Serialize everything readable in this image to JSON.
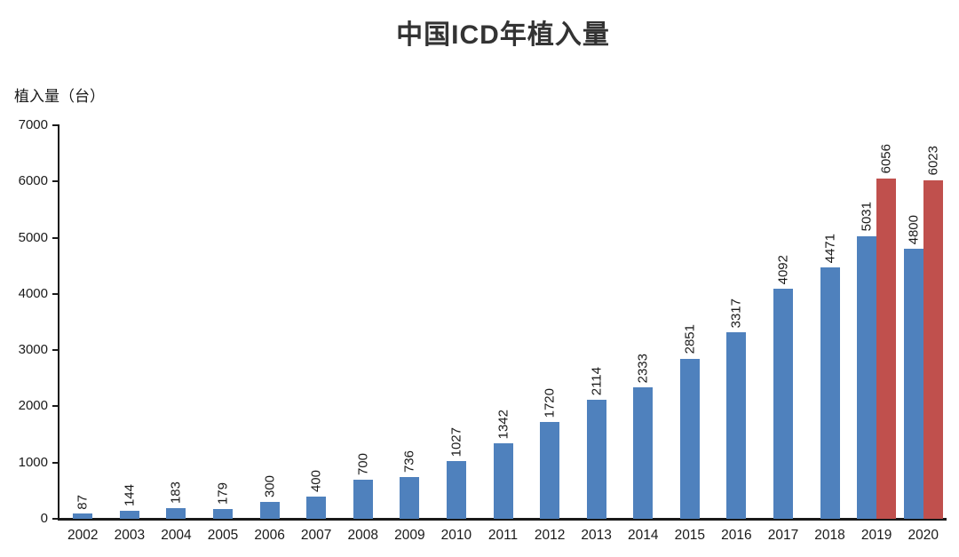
{
  "chart_data": {
    "type": "bar",
    "title": "中国ICD年植入量",
    "ylabel": "植入量（台）",
    "xlabel": "",
    "categories": [
      "2002",
      "2003",
      "2004",
      "2005",
      "2006",
      "2007",
      "2008",
      "2009",
      "2010",
      "2011",
      "2012",
      "2013",
      "2014",
      "2015",
      "2016",
      "2017",
      "2018",
      "2019",
      "2020"
    ],
    "series": [
      {
        "name": "series-blue",
        "color": "#4F81BD",
        "values": [
          87,
          144,
          183,
          179,
          300,
          400,
          700,
          736,
          1027,
          1342,
          1720,
          2114,
          2333,
          2851,
          3317,
          4092,
          4471,
          5031,
          4800
        ]
      },
      {
        "name": "series-red",
        "color": "#C0504D",
        "values": [
          null,
          null,
          null,
          null,
          null,
          null,
          null,
          null,
          null,
          null,
          null,
          null,
          null,
          null,
          null,
          null,
          null,
          6056,
          6023
        ]
      }
    ],
    "ylim": [
      0,
      7000
    ],
    "ytick_step": 1000,
    "yticks": [
      0,
      1000,
      2000,
      3000,
      4000,
      5000,
      6000,
      7000
    ],
    "grid": false,
    "legend": "none",
    "bar_label_rotation": -90,
    "axis_color": "#1a1a1a",
    "text_color": "#1a1a1a"
  }
}
